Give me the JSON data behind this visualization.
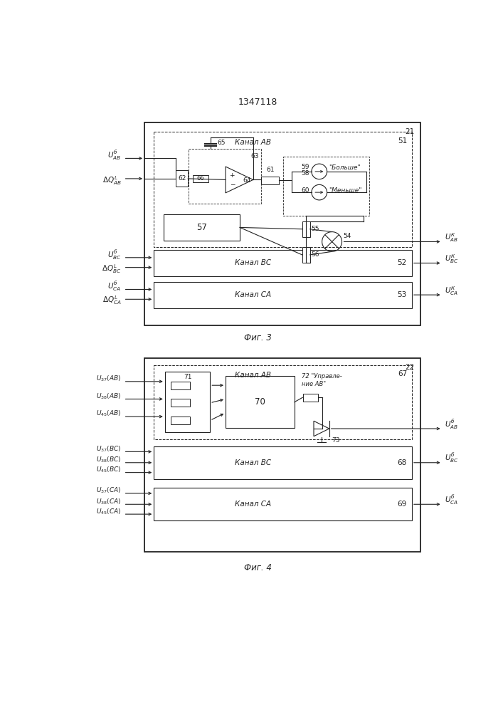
{
  "title": "1347118",
  "fig3_label": "Фиг. 3",
  "fig4_label": "Фиг. 4",
  "bg_color": "#ffffff",
  "line_color": "#000000"
}
